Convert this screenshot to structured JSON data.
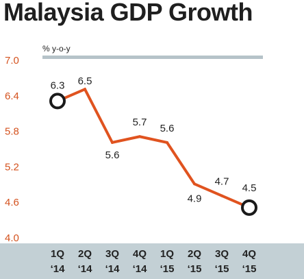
{
  "title": "Malaysia GDP Growth",
  "chart_data": {
    "type": "line",
    "title": "Malaysia GDP Growth",
    "unit_label": "% y-o-y",
    "xlabel": "",
    "ylabel": "",
    "categories": [
      [
        "1Q",
        "‘14"
      ],
      [
        "2Q",
        "‘14"
      ],
      [
        "3Q",
        "‘14"
      ],
      [
        "4Q",
        "‘14"
      ],
      [
        "1Q",
        "‘15"
      ],
      [
        "2Q",
        "‘15"
      ],
      [
        "3Q",
        "‘15"
      ],
      [
        "4Q",
        "‘15"
      ]
    ],
    "values": [
      6.3,
      6.5,
      5.6,
      5.7,
      5.6,
      4.9,
      4.7,
      4.5
    ],
    "value_labels": [
      "6.3",
      "6.5",
      "5.6",
      "5.7",
      "5.6",
      "4.9",
      "4.7",
      "4.5"
    ],
    "ylim": [
      4.0,
      7.0
    ],
    "yticks": [
      "7.0",
      "6.4",
      "5.8",
      "5.2",
      "4.6",
      "4.0"
    ],
    "grid": false,
    "highlighted_points": [
      0,
      7
    ],
    "colors": {
      "line": "#e0531f",
      "axis_text": "#d4521e",
      "top_rule": "#b6c3c9",
      "bottom_band": "#c3d0d5",
      "marker_fill": "#ffffff",
      "marker_stroke": "#1a1a1a"
    }
  }
}
